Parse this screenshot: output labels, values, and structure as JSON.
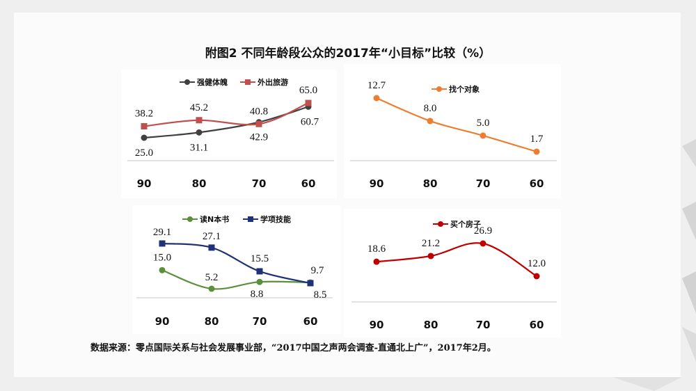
{
  "title": "附图2 不同年龄段公众的2017年“小目标”比较（%）",
  "source": "数据来源：零点国际关系与社会发展事业部，“2017中国之声两会调查-直通北上广”，2017年2月。",
  "chart_data": [
    {
      "type": "line",
      "categories": [
        "90",
        "80",
        "70",
        "60"
      ],
      "series": [
        {
          "name": "强健体魄",
          "values": [
            25.0,
            31.1,
            42.9,
            60.7
          ],
          "color": "#404040",
          "marker": "circle"
        },
        {
          "name": "外出旅游",
          "values": [
            38.2,
            45.2,
            40.8,
            65.0
          ],
          "color": "#c0504d",
          "marker": "square"
        }
      ],
      "legend": "top",
      "grid": false
    },
    {
      "type": "line",
      "categories": [
        "90",
        "80",
        "70",
        "60"
      ],
      "series": [
        {
          "name": "找个对象",
          "values": [
            12.7,
            8.0,
            5.0,
            1.7
          ],
          "color": "#ed7d31",
          "marker": "circle"
        }
      ],
      "legend": "top",
      "grid": false
    },
    {
      "type": "line",
      "categories": [
        "90",
        "80",
        "70",
        "60"
      ],
      "series": [
        {
          "name": "读N本书",
          "values": [
            15.0,
            5.2,
            8.8,
            8.5
          ],
          "color": "#5b8f3a",
          "marker": "circle"
        },
        {
          "name": "学项技能",
          "values": [
            29.1,
            27.1,
            15.5,
            9.7
          ],
          "color": "#1f3177",
          "marker": "square"
        }
      ],
      "legend": "top",
      "grid": false
    },
    {
      "type": "line",
      "categories": [
        "90",
        "80",
        "70",
        "60"
      ],
      "series": [
        {
          "name": "买个房子",
          "values": [
            18.6,
            21.2,
            26.9,
            12.0
          ],
          "color": "#c00000",
          "marker": "circle"
        }
      ],
      "legend": "top",
      "grid": false
    }
  ]
}
